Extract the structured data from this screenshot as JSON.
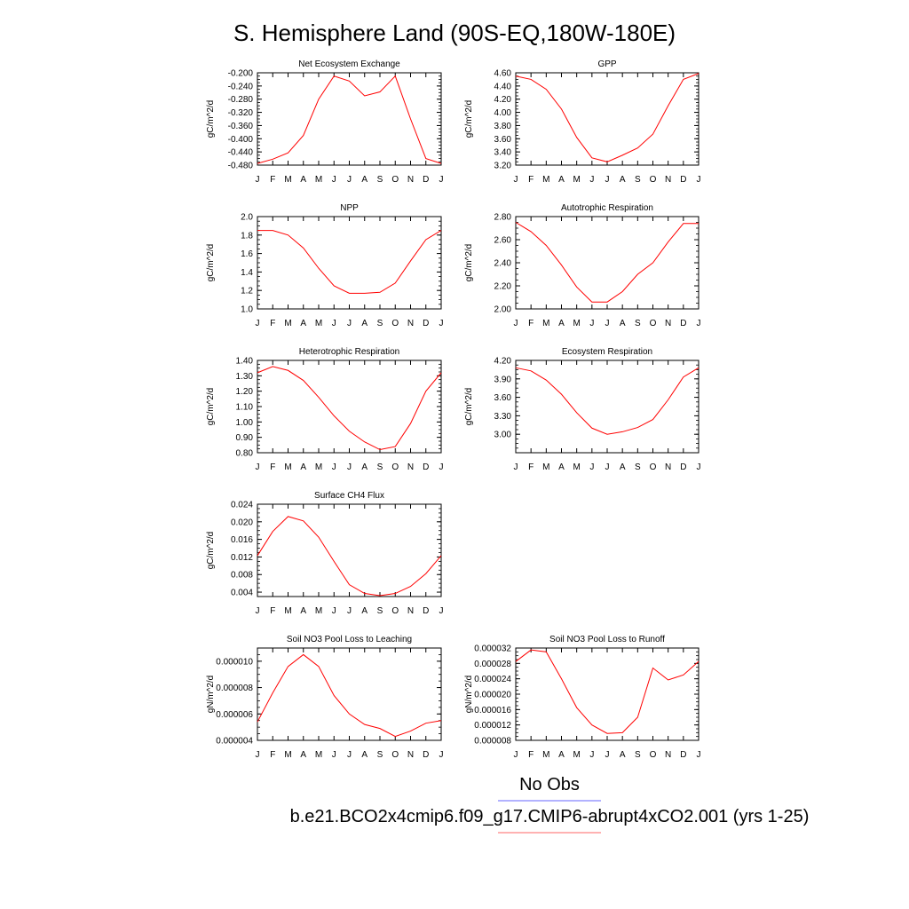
{
  "title": "S. Hemisphere Land (90S-EQ,180W-180E)",
  "legend": {
    "entries": [
      {
        "label": "No Obs",
        "color": "#6666ff"
      },
      {
        "label": "b.e21.BCO2x4cmip6.f09_g17.CMIP6-abrupt4xCO2.001 (yrs 1-25)",
        "color": "#ff6666"
      }
    ]
  },
  "series_color": "#ff0000",
  "chart_data": [
    {
      "type": "line",
      "title": "Net Ecosystem Exchange",
      "ylabel": "gC/m^2/d",
      "categories": [
        "J",
        "F",
        "M",
        "A",
        "M",
        "J",
        "J",
        "A",
        "S",
        "O",
        "N",
        "D",
        "J"
      ],
      "ylim": [
        -0.48,
        -0.2
      ],
      "yticks": [
        "-0.200",
        "-0.240",
        "-0.280",
        "-0.320",
        "-0.360",
        "-0.400",
        "-0.440",
        "-0.480"
      ],
      "values": [
        -0.475,
        -0.462,
        -0.443,
        -0.39,
        -0.28,
        -0.21,
        -0.225,
        -0.27,
        -0.258,
        -0.21,
        -0.34,
        -0.46,
        -0.475
      ]
    },
    {
      "type": "line",
      "title": "GPP",
      "ylabel": "gC/m^2/d",
      "categories": [
        "J",
        "F",
        "M",
        "A",
        "M",
        "J",
        "J",
        "A",
        "S",
        "O",
        "N",
        "D",
        "J"
      ],
      "ylim": [
        3.2,
        4.6
      ],
      "yticks": [
        "4.60",
        "4.40",
        "4.20",
        "4.00",
        "3.80",
        "3.60",
        "3.40",
        "3.20"
      ],
      "values": [
        4.55,
        4.5,
        4.35,
        4.05,
        3.62,
        3.31,
        3.25,
        3.35,
        3.46,
        3.67,
        4.1,
        4.5,
        4.59
      ]
    },
    {
      "type": "line",
      "title": "NPP",
      "ylabel": "gC/m^2/d",
      "categories": [
        "J",
        "F",
        "M",
        "A",
        "M",
        "J",
        "J",
        "A",
        "S",
        "O",
        "N",
        "D",
        "J"
      ],
      "ylim": [
        1.0,
        2.0
      ],
      "yticks": [
        "2.0",
        "1.8",
        "1.6",
        "1.4",
        "1.2",
        "1.0"
      ],
      "values": [
        1.85,
        1.85,
        1.8,
        1.66,
        1.44,
        1.25,
        1.17,
        1.17,
        1.18,
        1.28,
        1.52,
        1.75,
        1.85
      ]
    },
    {
      "type": "line",
      "title": "Autotrophic Respiration",
      "ylabel": "gC/m^2/d",
      "categories": [
        "J",
        "F",
        "M",
        "A",
        "M",
        "J",
        "J",
        "A",
        "S",
        "O",
        "N",
        "D",
        "J"
      ],
      "ylim": [
        2.0,
        2.8
      ],
      "yticks": [
        "2.80",
        "2.60",
        "2.40",
        "2.20",
        "2.00"
      ],
      "values": [
        2.75,
        2.67,
        2.55,
        2.38,
        2.19,
        2.06,
        2.06,
        2.15,
        2.3,
        2.4,
        2.58,
        2.74,
        2.74
      ]
    },
    {
      "type": "line",
      "title": "Heterotrophic Respiration",
      "ylabel": "gC/m^2/d",
      "categories": [
        "J",
        "F",
        "M",
        "A",
        "M",
        "J",
        "J",
        "A",
        "S",
        "O",
        "N",
        "D",
        "J"
      ],
      "ylim": [
        0.8,
        1.4
      ],
      "yticks": [
        "1.40",
        "1.30",
        "1.20",
        "1.10",
        "1.00",
        "0.90",
        "0.80"
      ],
      "values": [
        1.32,
        1.36,
        1.335,
        1.27,
        1.16,
        1.04,
        0.94,
        0.87,
        0.82,
        0.84,
        0.99,
        1.2,
        1.32
      ]
    },
    {
      "type": "line",
      "title": "Ecosystem Respiration",
      "ylabel": "gC/m^2/d",
      "categories": [
        "J",
        "F",
        "M",
        "A",
        "M",
        "J",
        "J",
        "A",
        "S",
        "O",
        "N",
        "D",
        "J"
      ],
      "ylim": [
        2.7,
        4.2
      ],
      "yticks": [
        "4.20",
        "3.90",
        "3.60",
        "3.30",
        "3.00"
      ],
      "values": [
        4.08,
        4.03,
        3.88,
        3.65,
        3.35,
        3.1,
        3.0,
        3.04,
        3.11,
        3.24,
        3.56,
        3.93,
        4.08
      ]
    },
    {
      "type": "line",
      "title": "Surface CH4 Flux",
      "ylabel": "gC/m^2/d",
      "categories": [
        "J",
        "F",
        "M",
        "A",
        "M",
        "J",
        "J",
        "A",
        "S",
        "O",
        "N",
        "D",
        "J"
      ],
      "ylim": [
        0.003,
        0.024
      ],
      "yticks": [
        "0.024",
        "0.020",
        "0.016",
        "0.012",
        "0.008",
        "0.004"
      ],
      "values": [
        0.0123,
        0.0178,
        0.0212,
        0.0202,
        0.0165,
        0.011,
        0.0057,
        0.0037,
        0.0032,
        0.0037,
        0.0053,
        0.0082,
        0.0123
      ]
    },
    {
      "type": "line",
      "title": "Soil NO3 Pool Loss to Leaching",
      "ylabel": "gN/m^2/d",
      "categories": [
        "J",
        "F",
        "M",
        "A",
        "M",
        "J",
        "J",
        "A",
        "S",
        "O",
        "N",
        "D",
        "J"
      ],
      "ylim": [
        4e-06,
        1.1e-05
      ],
      "yticks": [
        "0.000010",
        "0.000008",
        "0.000006",
        "0.000004"
      ],
      "values": [
        5.4e-06,
        7.6e-06,
        9.6e-06,
        1.05e-05,
        9.6e-06,
        7.4e-06,
        6e-06,
        5.2e-06,
        4.9e-06,
        4.3e-06,
        4.7e-06,
        5.3e-06,
        5.5e-06
      ]
    },
    {
      "type": "line",
      "title": "Soil NO3 Pool Loss to Runoff",
      "ylabel": "gN/m^2/d",
      "categories": [
        "J",
        "F",
        "M",
        "A",
        "M",
        "J",
        "J",
        "A",
        "S",
        "O",
        "N",
        "D",
        "J"
      ],
      "ylim": [
        8e-06,
        3.2e-05
      ],
      "yticks": [
        "0.000032",
        "0.000028",
        "0.000024",
        "0.000020",
        "0.000016",
        "0.000012",
        "0.000008"
      ],
      "values": [
        2.85e-05,
        3.15e-05,
        3.1e-05,
        2.4e-05,
        1.65e-05,
        1.2e-05,
        9.8e-06,
        1e-05,
        1.4e-05,
        2.68e-05,
        2.37e-05,
        2.5e-05,
        2.85e-05
      ]
    }
  ]
}
